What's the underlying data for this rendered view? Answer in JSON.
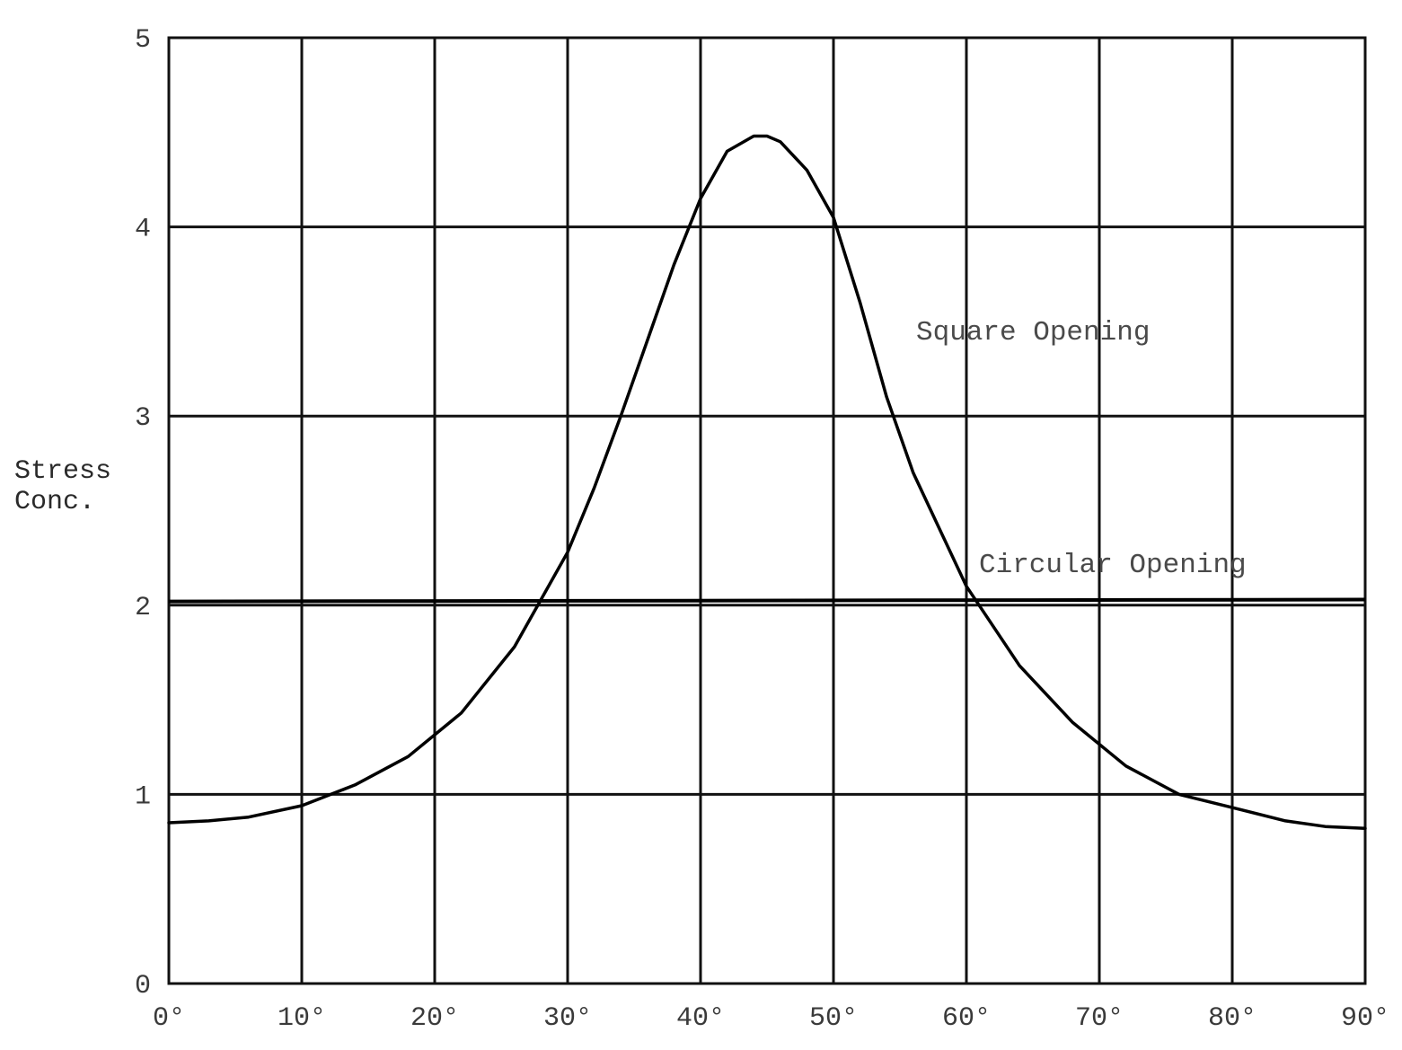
{
  "chart_data": {
    "type": "line",
    "title": "",
    "xlabel": "",
    "ylabel": [
      "Stress",
      "Conc."
    ],
    "xlim": [
      0,
      90
    ],
    "ylim": [
      0,
      5
    ],
    "grid": true,
    "x_ticks": [
      0,
      10,
      20,
      30,
      40,
      50,
      60,
      70,
      80,
      90
    ],
    "x_tick_labels": [
      "0°",
      "10°",
      "20°",
      "30°",
      "40°",
      "50°",
      "60°",
      "70°",
      "80°",
      "90°"
    ],
    "y_ticks": [
      0,
      1,
      2,
      3,
      4,
      5
    ],
    "y_tick_labels": [
      "0",
      "1",
      "2",
      "3",
      "4",
      "5"
    ],
    "series": [
      {
        "name": "Square Opening",
        "x": [
          0,
          3,
          6,
          10,
          14,
          18,
          22,
          26,
          30,
          32,
          34,
          36,
          38,
          40,
          42,
          44,
          45,
          46,
          48,
          50,
          52,
          54,
          56,
          58,
          60,
          64,
          68,
          72,
          76,
          80,
          84,
          87,
          90
        ],
        "y": [
          0.85,
          0.86,
          0.88,
          0.94,
          1.05,
          1.2,
          1.43,
          1.78,
          2.28,
          2.62,
          3.0,
          3.4,
          3.8,
          4.15,
          4.4,
          4.48,
          4.48,
          4.45,
          4.3,
          4.05,
          3.6,
          3.1,
          2.7,
          2.4,
          2.1,
          1.68,
          1.38,
          1.15,
          1.0,
          0.93,
          0.86,
          0.83,
          0.82
        ]
      },
      {
        "name": "Circular Opening",
        "x": [
          0,
          90
        ],
        "y": [
          2.02,
          2.03
        ]
      }
    ],
    "annotations": [
      {
        "text": "Square Opening",
        "series": "Square Opening"
      },
      {
        "text": "Circular Opening",
        "series": "Circular Opening"
      }
    ]
  }
}
